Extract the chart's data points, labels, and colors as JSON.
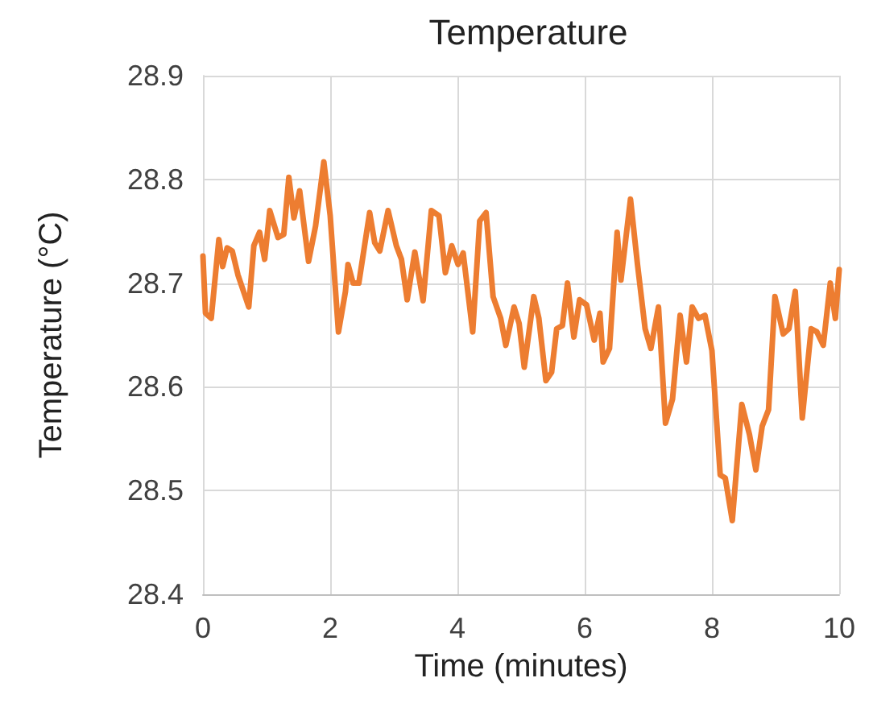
{
  "chart_data": {
    "type": "line",
    "title": "Temperature",
    "xlabel": "Time (minutes)",
    "ylabel": "Temperature (°C)",
    "xlim": [
      0,
      10
    ],
    "xticks": [
      0,
      2,
      4,
      6,
      8,
      10
    ],
    "ylim": [
      28.4,
      28.9
    ],
    "yticks": [
      28.4,
      28.5,
      28.6,
      28.7,
      28.8,
      28.9
    ],
    "grid": true,
    "marker": "none",
    "line_style": "solid",
    "x": [
      0,
      0.04,
      0.13,
      0.25,
      0.31,
      0.38,
      0.46,
      0.55,
      0.72,
      0.8,
      0.89,
      0.97,
      1.05,
      1.18,
      1.27,
      1.35,
      1.43,
      1.52,
      1.66,
      1.77,
      1.9,
      2.0,
      2.13,
      2.24,
      2.28,
      2.36,
      2.45,
      2.62,
      2.7,
      2.78,
      2.91,
      3.04,
      3.12,
      3.21,
      3.33,
      3.46,
      3.59,
      3.71,
      3.81,
      3.91,
      4.01,
      4.09,
      4.24,
      4.35,
      4.45,
      4.56,
      4.68,
      4.76,
      4.89,
      4.97,
      5.05,
      5.2,
      5.28,
      5.39,
      5.48,
      5.56,
      5.65,
      5.73,
      5.83,
      5.92,
      6.03,
      6.15,
      6.24,
      6.29,
      6.39,
      6.51,
      6.57,
      6.72,
      6.83,
      6.95,
      7.04,
      7.16,
      7.27,
      7.38,
      7.5,
      7.6,
      7.69,
      7.79,
      7.89,
      8.0,
      8.13,
      8.21,
      8.32,
      8.47,
      8.59,
      8.69,
      8.79,
      8.89,
      8.99,
      9.12,
      9.21,
      9.31,
      9.42,
      9.56,
      9.65,
      9.75,
      9.86,
      9.94,
      10.0
    ],
    "series": [
      {
        "color": "#ed7d31",
        "values": [
          28.726,
          28.671,
          28.666,
          28.742,
          28.716,
          28.734,
          28.731,
          28.708,
          28.677,
          28.736,
          28.749,
          28.723,
          28.77,
          28.744,
          28.747,
          28.802,
          28.763,
          28.789,
          28.721,
          28.755,
          28.817,
          28.765,
          28.653,
          28.692,
          28.718,
          28.7,
          28.7,
          28.768,
          28.739,
          28.731,
          28.77,
          28.736,
          28.723,
          28.684,
          28.73,
          28.683,
          28.77,
          28.765,
          28.71,
          28.736,
          28.718,
          28.729,
          28.653,
          28.76,
          28.768,
          28.687,
          28.666,
          28.64,
          28.677,
          28.661,
          28.619,
          28.687,
          28.666,
          28.606,
          28.614,
          28.656,
          28.659,
          28.7,
          28.648,
          28.684,
          28.679,
          28.645,
          28.671,
          28.624,
          28.637,
          28.749,
          28.703,
          28.781,
          28.718,
          28.656,
          28.637,
          28.677,
          28.565,
          28.588,
          28.669,
          28.624,
          28.677,
          28.666,
          28.669,
          28.635,
          28.515,
          28.512,
          28.471,
          28.583,
          28.554,
          28.52,
          28.562,
          28.578,
          28.687,
          28.651,
          28.656,
          28.692,
          28.57,
          28.656,
          28.653,
          28.64,
          28.7,
          28.666,
          28.713
        ]
      }
    ]
  }
}
